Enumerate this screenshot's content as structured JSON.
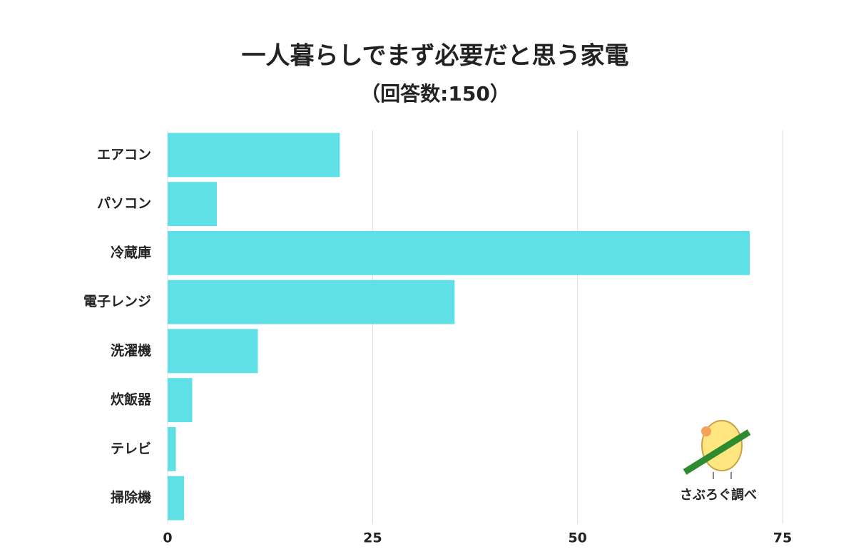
{
  "chart_data": {
    "type": "bar",
    "orientation": "horizontal",
    "title": "一人暮らしでまず必要だと思う家電",
    "subtitle": "（回答数:150）",
    "categories": [
      "エアコン",
      "パソコン",
      "冷蔵庫",
      "電子レンジ",
      "洗濯機",
      "炊飯器",
      "テレビ",
      "掃除機"
    ],
    "values": [
      21,
      6,
      71,
      35,
      11,
      3,
      1,
      2
    ],
    "color": "#5ee0e6",
    "xlim": [
      0,
      75
    ],
    "xticks": [
      0,
      25,
      50,
      75
    ],
    "grid": true,
    "credit": "さぶろぐ調べ"
  }
}
